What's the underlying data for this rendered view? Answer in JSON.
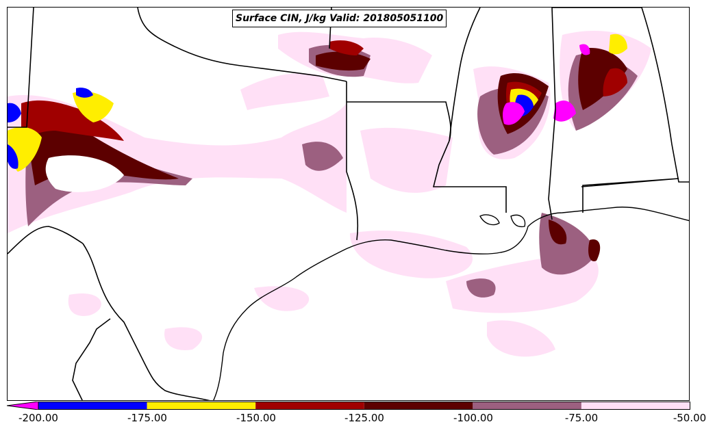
{
  "title": "Surface CIN, J/kg Valid: 201805051100",
  "legend": {
    "ticks": [
      "-200.00",
      "-175.00",
      "-150.00",
      "-125.00",
      "-100.00",
      "-75.00",
      "-50.00"
    ],
    "colors": [
      "#ff00ff",
      "#0000ff",
      "#ffee00",
      "#a00000",
      "#5c0000",
      "#9c6080",
      "#ffe0f6"
    ],
    "bins": [
      {
        "from": -200,
        "to": -175,
        "color": "#0000ff"
      },
      {
        "from": -175,
        "to": -150,
        "color": "#ffee00"
      },
      {
        "from": -150,
        "to": -125,
        "color": "#a00000"
      },
      {
        "from": -125,
        "to": -100,
        "color": "#5c0000"
      },
      {
        "from": -100,
        "to": -75,
        "color": "#9c6080"
      },
      {
        "from": -75,
        "to": -50,
        "color": "#ffe0f6"
      }
    ],
    "extend_below_color": "#ff00ff"
  }
}
